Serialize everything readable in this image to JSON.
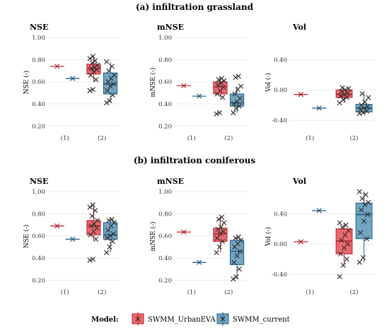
{
  "figure": {
    "sections": [
      {
        "title": "(a) infiltration grassland"
      },
      {
        "title": "(b) infiltration coniferous"
      }
    ],
    "legend": {
      "title": "Model:",
      "items": [
        {
          "name": "SWMM_UrbanEVA",
          "color": "#e8434a",
          "edge": "#b8202a"
        },
        {
          "name": "SWMM_current",
          "color": "#4f8eb3",
          "edge": "#1f5c80"
        }
      ]
    }
  },
  "chart_data": [
    {
      "type": "box",
      "panel_title": "NSE",
      "ylabel": "NSE (-)",
      "ylim": [
        0.17,
        1.02
      ],
      "yticks": [
        "0.20",
        "0.40",
        "0.60",
        "0.80",
        "1.00"
      ],
      "ytick_values": [
        0.2,
        0.4,
        0.6,
        0.8,
        1.0
      ],
      "categories": [
        "(1)",
        "(2)"
      ],
      "single": [
        {
          "series": "SWMM_UrbanEVA",
          "value": 0.74
        },
        {
          "series": "SWMM_current",
          "value": 0.63
        }
      ],
      "boxes": [
        {
          "series": "SWMM_UrbanEVA",
          "min": 0.6,
          "q1": 0.67,
          "median": 0.72,
          "q3": 0.76,
          "max": 0.83,
          "points": [
            0.52,
            0.53,
            0.62,
            0.66,
            0.69,
            0.71,
            0.72,
            0.73,
            0.75,
            0.77,
            0.79,
            0.81,
            0.83
          ]
        },
        {
          "series": "SWMM_current",
          "min": 0.41,
          "q1": 0.49,
          "median": 0.58,
          "q3": 0.68,
          "max": 0.78,
          "points": [
            0.41,
            0.43,
            0.48,
            0.52,
            0.56,
            0.58,
            0.6,
            0.63,
            0.66,
            0.7,
            0.74,
            0.78
          ]
        }
      ]
    },
    {
      "type": "box",
      "panel_title": "mNSE",
      "ylabel": "mNSE (-)",
      "ylim": [
        0.17,
        1.02
      ],
      "yticks": [
        "0.20",
        "0.40",
        "0.60",
        "0.80",
        "1.00"
      ],
      "ytick_values": [
        0.2,
        0.4,
        0.6,
        0.8,
        1.0
      ],
      "categories": [
        "(1)",
        "(2)"
      ],
      "single": [
        {
          "series": "SWMM_UrbanEVA",
          "value": 0.565
        },
        {
          "series": "SWMM_current",
          "value": 0.47
        }
      ],
      "boxes": [
        {
          "series": "SWMM_UrbanEVA",
          "min": 0.46,
          "q1": 0.49,
          "median": 0.555,
          "q3": 0.6,
          "max": 0.63,
          "points": [
            0.31,
            0.32,
            0.46,
            0.49,
            0.52,
            0.55,
            0.57,
            0.59,
            0.61,
            0.62,
            0.63
          ]
        },
        {
          "series": "SWMM_current",
          "min": 0.32,
          "q1": 0.38,
          "median": 0.41,
          "q3": 0.49,
          "max": 0.56,
          "points": [
            0.32,
            0.36,
            0.38,
            0.4,
            0.42,
            0.45,
            0.49,
            0.53,
            0.56,
            0.64,
            0.65
          ]
        }
      ]
    },
    {
      "type": "box",
      "panel_title": "Vol",
      "ylabel": "Vol (-)",
      "ylim": [
        -0.52,
        0.72
      ],
      "yticks": [
        "-0.40",
        "0.00",
        "0.40"
      ],
      "ytick_values": [
        -0.4,
        0.0,
        0.4
      ],
      "categories": [
        "(1)",
        "(2)"
      ],
      "single": [
        {
          "series": "SWMM_UrbanEVA",
          "value": -0.06
        },
        {
          "series": "SWMM_current",
          "value": -0.24
        }
      ],
      "boxes": [
        {
          "series": "SWMM_UrbanEVA",
          "min": -0.17,
          "q1": -0.1,
          "median": -0.06,
          "q3": 0.0,
          "max": 0.03,
          "points": [
            -0.17,
            -0.13,
            -0.1,
            -0.08,
            -0.06,
            -0.04,
            -0.02,
            0.0,
            0.02,
            0.03
          ]
        },
        {
          "series": "SWMM_current",
          "min": -0.31,
          "q1": -0.29,
          "median": -0.24,
          "q3": -0.19,
          "max": -0.05,
          "points": [
            -0.31,
            -0.3,
            -0.28,
            -0.26,
            -0.24,
            -0.22,
            -0.2,
            -0.16,
            -0.1,
            -0.05
          ]
        }
      ]
    },
    {
      "type": "box",
      "panel_title": "NSE",
      "ylabel": "NSE (-)",
      "ylim": [
        0.17,
        1.02
      ],
      "yticks": [
        "0.20",
        "0.40",
        "0.60",
        "0.80",
        "1.00"
      ],
      "ytick_values": [
        0.2,
        0.4,
        0.6,
        0.8,
        1.0
      ],
      "categories": [
        "(1)",
        "(2)"
      ],
      "single": [
        {
          "series": "SWMM_UrbanEVA",
          "value": 0.69
        },
        {
          "series": "SWMM_current",
          "value": 0.57
        }
      ],
      "boxes": [
        {
          "series": "SWMM_UrbanEVA",
          "min": 0.56,
          "q1": 0.61,
          "median": 0.69,
          "q3": 0.74,
          "max": 0.88,
          "points": [
            0.38,
            0.39,
            0.57,
            0.61,
            0.64,
            0.67,
            0.69,
            0.71,
            0.74,
            0.78,
            0.83,
            0.86,
            0.88
          ]
        },
        {
          "series": "SWMM_current",
          "min": 0.45,
          "q1": 0.57,
          "median": 0.61,
          "q3": 0.72,
          "max": 0.75,
          "points": [
            0.45,
            0.5,
            0.55,
            0.58,
            0.6,
            0.62,
            0.65,
            0.69,
            0.72,
            0.74,
            0.75
          ]
        }
      ]
    },
    {
      "type": "box",
      "panel_title": "mNSE",
      "ylabel": "mNSE (-)",
      "ylim": [
        0.17,
        1.02
      ],
      "yticks": [
        "0.20",
        "0.40",
        "0.60",
        "0.80",
        "1.00"
      ],
      "ytick_values": [
        0.2,
        0.4,
        0.6,
        0.8,
        1.0
      ],
      "categories": [
        "(1)",
        "(2)"
      ],
      "single": [
        {
          "series": "SWMM_UrbanEVA",
          "value": 0.635
        },
        {
          "series": "SWMM_current",
          "value": 0.36
        }
      ],
      "boxes": [
        {
          "series": "SWMM_UrbanEVA",
          "min": 0.45,
          "q1": 0.55,
          "median": 0.62,
          "q3": 0.67,
          "max": 0.77,
          "points": [
            0.45,
            0.5,
            0.55,
            0.58,
            0.62,
            0.64,
            0.66,
            0.68,
            0.72,
            0.75,
            0.77
          ]
        },
        {
          "series": "SWMM_current",
          "min": 0.21,
          "q1": 0.34,
          "median": 0.46,
          "q3": 0.56,
          "max": 0.59,
          "points": [
            0.21,
            0.23,
            0.3,
            0.36,
            0.42,
            0.46,
            0.5,
            0.53,
            0.56,
            0.58,
            0.59
          ]
        }
      ]
    },
    {
      "type": "box",
      "panel_title": "Vol",
      "ylabel": "Vol (-)",
      "ylim": [
        -0.52,
        0.72
      ],
      "yticks": [
        "-0.40",
        "0.00",
        "0.40"
      ],
      "ytick_values": [
        -0.4,
        0.0,
        0.4
      ],
      "categories": [
        "(1)",
        "(2)"
      ],
      "single": [
        {
          "series": "SWMM_UrbanEVA",
          "value": 0.03
        },
        {
          "series": "SWMM_current",
          "value": 0.44
        }
      ],
      "boxes": [
        {
          "series": "SWMM_UrbanEVA",
          "min": -0.28,
          "q1": -0.13,
          "median": 0.04,
          "q3": 0.2,
          "max": 0.28,
          "points": [
            -0.43,
            -0.28,
            -0.2,
            -0.13,
            -0.05,
            0.0,
            0.05,
            0.12,
            0.18,
            0.22,
            0.25,
            0.28
          ]
        },
        {
          "series": "SWMM_current",
          "min": -0.24,
          "q1": 0.07,
          "median": 0.39,
          "q3": 0.54,
          "max": 0.69,
          "points": [
            -0.24,
            -0.18,
            0.07,
            0.15,
            0.3,
            0.39,
            0.45,
            0.52,
            0.55,
            0.6,
            0.65,
            0.69
          ]
        }
      ]
    }
  ]
}
